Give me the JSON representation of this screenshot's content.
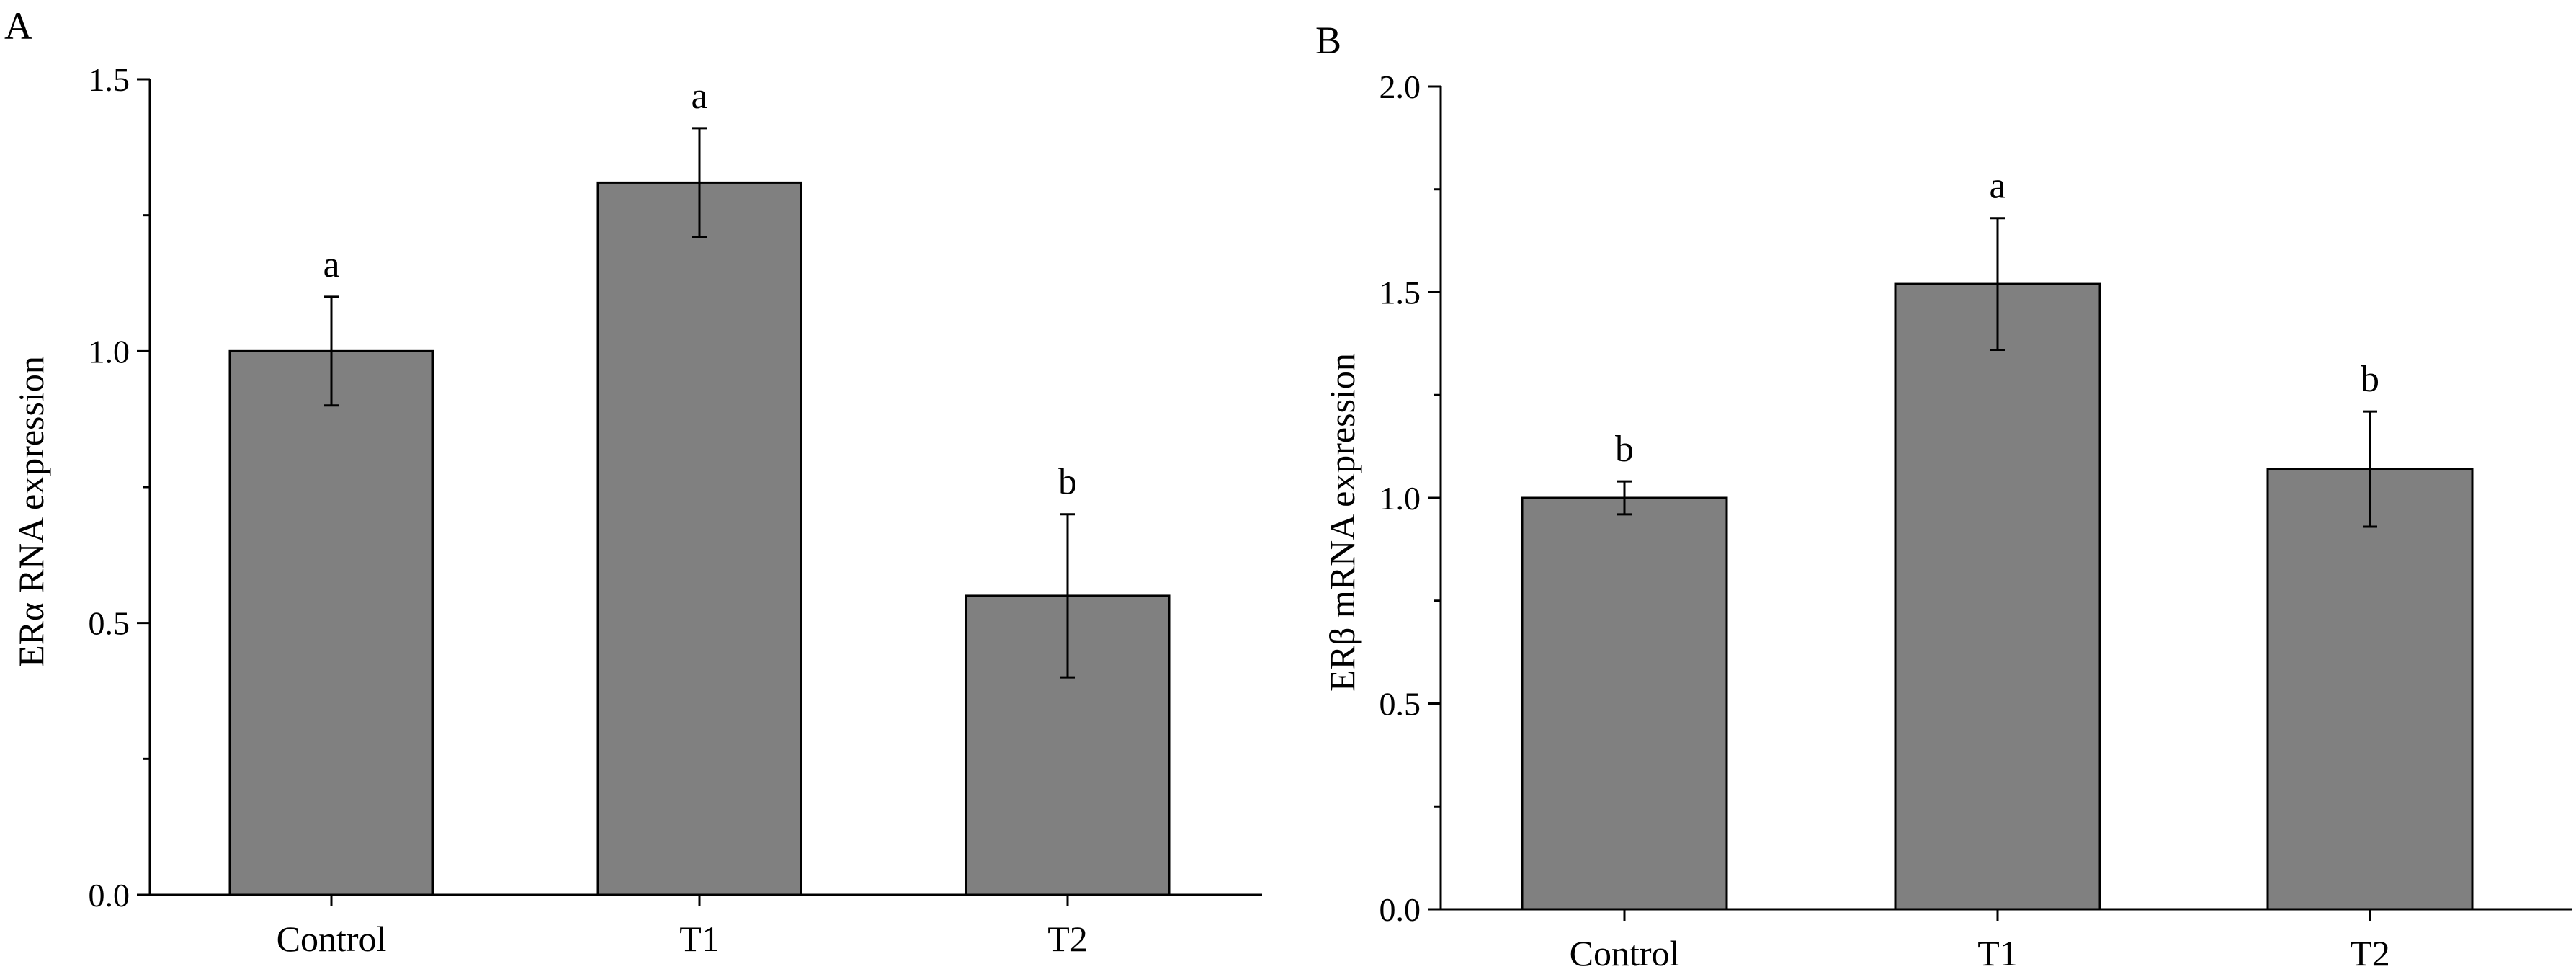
{
  "chart_data": [
    {
      "panel": "A",
      "type": "bar",
      "categories": [
        "Control",
        "T1",
        "T2"
      ],
      "values": [
        1.0,
        1.31,
        0.55
      ],
      "errors": [
        0.1,
        0.1,
        0.15
      ],
      "significance": [
        "a",
        "a",
        "b"
      ],
      "ylabel": "ERα RNA expression",
      "xlabel": "",
      "ylim": [
        0,
        1.5
      ],
      "yticks": [
        "0.0",
        "0.5",
        "1.0",
        "1.5"
      ],
      "bar_color": "#808080"
    },
    {
      "panel": "B",
      "type": "bar",
      "categories": [
        "Control",
        "T1",
        "T2"
      ],
      "values": [
        1.0,
        1.52,
        1.07
      ],
      "errors": [
        0.04,
        0.16,
        0.14
      ],
      "significance": [
        "b",
        "a",
        "b"
      ],
      "ylabel": "ERβ  mRNA expression",
      "xlabel": "",
      "ylim": [
        0,
        2.0
      ],
      "yticks": [
        "0.0",
        "0.5",
        "1.0",
        "1.5",
        "2.0"
      ],
      "bar_color": "#808080"
    }
  ]
}
